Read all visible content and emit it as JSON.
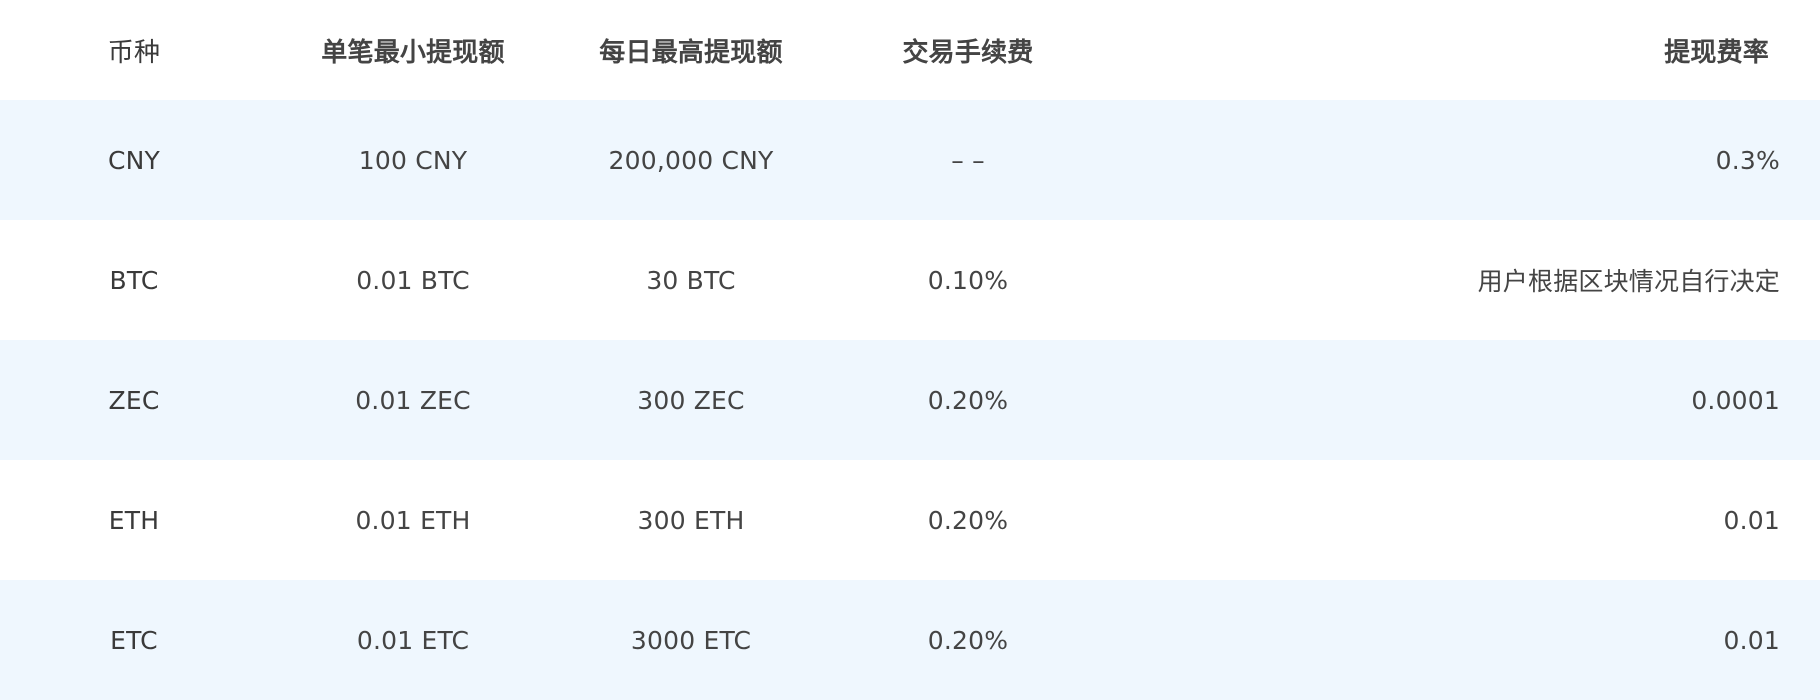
{
  "table": {
    "headers": [
      "币种",
      "单笔最小提现额",
      "每日最高提现额",
      "交易手续费",
      "提现费率"
    ],
    "rows": [
      {
        "currency": "CNY",
        "min_single": "100 CNY",
        "max_daily": "200,000 CNY",
        "trade_fee": "– –",
        "withdraw_rate": "0.3%"
      },
      {
        "currency": "BTC",
        "min_single": "0.01 BTC",
        "max_daily": "30 BTC",
        "trade_fee": "0.10%",
        "withdraw_rate": "用户根据区块情况自行决定"
      },
      {
        "currency": "ZEC",
        "min_single": "0.01 ZEC",
        "max_daily": "300 ZEC",
        "trade_fee": "0.20%",
        "withdraw_rate": "0.0001"
      },
      {
        "currency": "ETH",
        "min_single": "0.01 ETH",
        "max_daily": "300 ETH",
        "trade_fee": "0.20%",
        "withdraw_rate": "0.01"
      },
      {
        "currency": "ETC",
        "min_single": "0.01 ETC",
        "max_daily": "3000 ETC",
        "trade_fee": "0.20%",
        "withdraw_rate": "0.01"
      }
    ]
  },
  "colors": {
    "stripe": "#eff7fe",
    "background": "#ffffff",
    "text": "#444444"
  }
}
